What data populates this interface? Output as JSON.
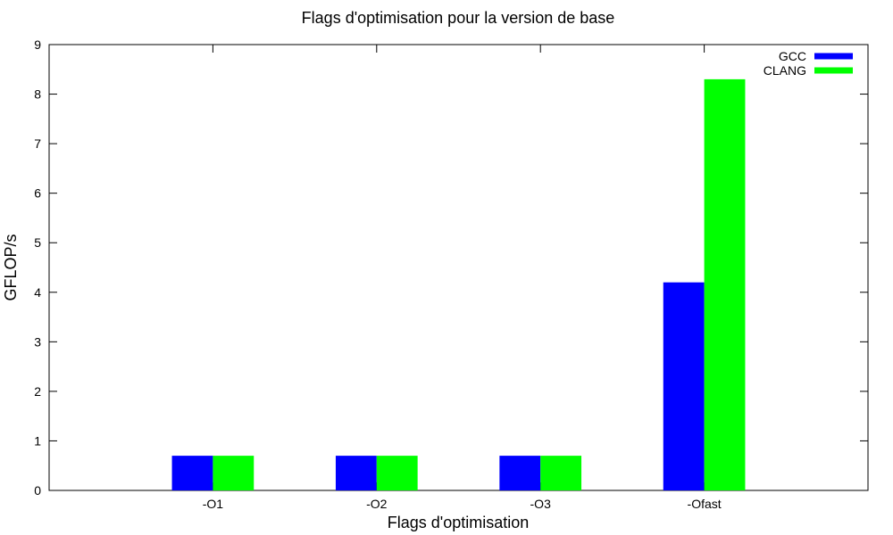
{
  "chart_data": {
    "type": "bar",
    "title": "Flags d'optimisation pour la version de base",
    "xlabel": "Flags d'optimisation",
    "ylabel": "GFLOP/s",
    "categories": [
      "-O1",
      "-O2",
      "-O3",
      "-Ofast"
    ],
    "series": [
      {
        "name": "GCC",
        "color": "#0000ff",
        "values": [
          0.7,
          0.7,
          0.7,
          4.2
        ]
      },
      {
        "name": "CLANG",
        "color": "#00ff00",
        "values": [
          0.7,
          0.7,
          0.7,
          8.3
        ]
      }
    ],
    "ylim": [
      0,
      9
    ],
    "yticks": [
      0,
      1,
      2,
      3,
      4,
      5,
      6,
      7,
      8,
      9
    ],
    "grid": false,
    "legend_position": "top-right"
  }
}
